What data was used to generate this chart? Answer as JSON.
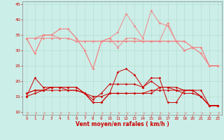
{
  "xlabel": "Vent moyen/en rafales ( km/h )",
  "background_color": "#cceee8",
  "grid_color": "#aaddcc",
  "xlim": [
    -0.5,
    23.5
  ],
  "ylim": [
    9,
    46
  ],
  "yticks": [
    10,
    15,
    20,
    25,
    30,
    35,
    40,
    45
  ],
  "xticks": [
    0,
    1,
    2,
    3,
    4,
    5,
    6,
    7,
    8,
    9,
    10,
    11,
    12,
    13,
    14,
    15,
    16,
    17,
    18,
    19,
    20,
    21,
    22,
    23
  ],
  "light_pink_lines": [
    [
      34,
      29,
      35,
      35,
      37,
      37,
      34,
      30,
      24,
      33,
      34,
      31,
      34,
      34,
      33,
      33,
      33,
      39,
      33,
      30,
      31,
      29,
      25,
      25
    ],
    [
      34,
      29,
      35,
      35,
      37,
      37,
      34,
      30,
      24,
      33,
      34,
      36,
      42,
      38,
      34,
      43,
      39,
      38,
      33,
      30,
      31,
      29,
      25,
      25
    ],
    [
      34,
      34,
      35,
      35,
      34,
      34,
      33,
      33,
      33,
      33,
      33,
      33,
      33,
      33,
      33,
      33,
      33,
      33,
      33,
      33,
      31,
      31,
      25,
      25
    ],
    [
      34,
      34,
      34,
      34,
      34,
      34,
      33,
      33,
      33,
      33,
      33,
      33,
      33,
      33,
      33,
      33,
      33,
      33,
      33,
      33,
      31,
      31,
      25,
      25
    ]
  ],
  "dark_red_lines": [
    [
      16,
      17,
      17,
      18,
      18,
      18,
      18,
      16,
      13,
      13,
      16,
      23,
      24,
      22,
      18,
      21,
      21,
      13,
      13,
      17,
      17,
      15,
      12,
      12
    ],
    [
      16,
      17,
      17,
      18,
      18,
      18,
      18,
      16,
      13,
      13,
      16,
      16,
      16,
      16,
      16,
      16,
      18,
      18,
      18,
      17,
      17,
      15,
      12,
      12
    ],
    [
      15,
      21,
      18,
      18,
      18,
      17,
      17,
      16,
      14,
      16,
      19,
      19,
      19,
      19,
      18,
      20,
      18,
      18,
      17,
      17,
      17,
      17,
      12,
      12
    ],
    [
      15,
      16,
      17,
      17,
      17,
      17,
      17,
      16,
      15,
      15,
      16,
      16,
      16,
      16,
      16,
      17,
      17,
      17,
      17,
      16,
      16,
      15,
      12,
      12
    ]
  ],
  "light_pink_color": "#f08888",
  "dark_red_color": "#cc0000",
  "marker_size": 1.8,
  "linewidth": 0.7,
  "arrow_color": "#ee8888"
}
